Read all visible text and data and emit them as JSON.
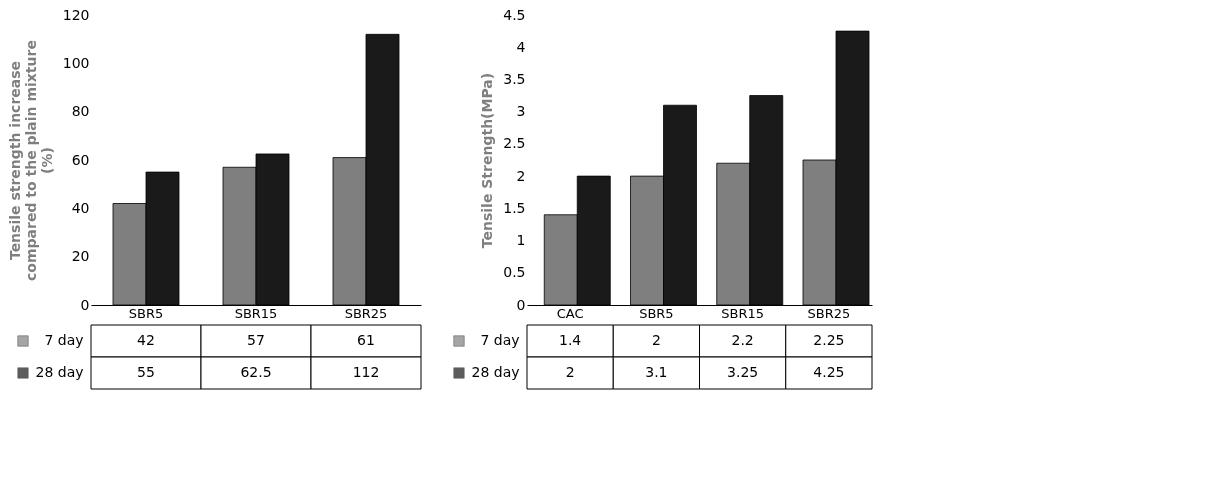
{
  "chart_data": [
    {
      "type": "bar",
      "ylabel": "Tensile strength  increase compared to the plain mixture (%)",
      "categories": [
        "SBR5",
        "SBR15",
        "SBR25"
      ],
      "ylim": [
        0,
        120
      ],
      "yticks": [
        0,
        20,
        40,
        60,
        80,
        100,
        120
      ],
      "grid": false,
      "legend": "bottom",
      "data_labels": true,
      "series": [
        {
          "name": "7 day",
          "color": "#7f7f7f",
          "values": [
            42,
            57,
            61
          ]
        },
        {
          "name": "28 day",
          "color": "#1a1a1a",
          "values": [
            55,
            62.5,
            112
          ]
        }
      ]
    },
    {
      "type": "bar",
      "ylabel": "Tensile Strength(MPa)",
      "categories": [
        "CAC",
        "SBR5",
        "SBR15",
        "SBR25"
      ],
      "ylim": [
        0,
        4.5
      ],
      "yticks": [
        0,
        0.5,
        1,
        1.5,
        2,
        2.5,
        3,
        3.5,
        4,
        4.5
      ],
      "grid": false,
      "legend": "bottom",
      "data_labels": true,
      "series": [
        {
          "name": "7 day",
          "color": "#7f7f7f",
          "values": [
            1.4,
            2,
            2.2,
            2.25
          ]
        },
        {
          "name": "28 day",
          "color": "#1a1a1a",
          "values": [
            2,
            3.1,
            3.25,
            4.25
          ]
        }
      ]
    }
  ]
}
